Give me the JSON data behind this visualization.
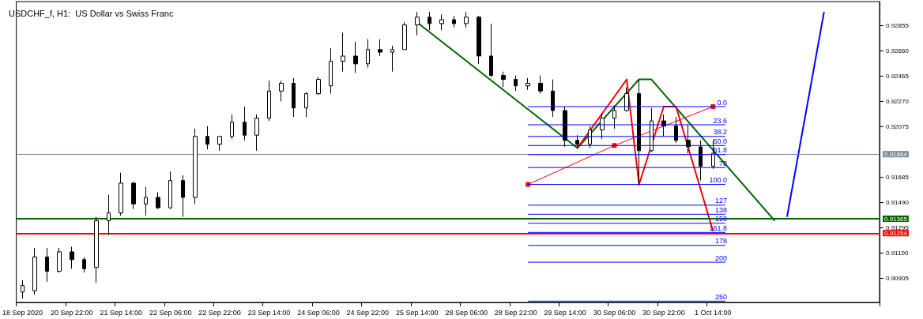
{
  "chart_data": {
    "type": "candlestick",
    "title": "USDCHF_f, H1:  US Dollar vs Swiss Franc",
    "categories": [
      "18 Sep 2020",
      null,
      null,
      null,
      "20 Sep 22:00",
      null,
      null,
      null,
      "21 Sep 14:00",
      null,
      null,
      null,
      "22 Sep 06:00",
      null,
      null,
      null,
      "22 Sep 22:00",
      null,
      null,
      null,
      "23 Sep 14:00",
      null,
      null,
      null,
      "24 Sep 06:00",
      null,
      null,
      null,
      "24 Sep 22:00",
      null,
      null,
      null,
      "25 Sep 14:00",
      null,
      null,
      null,
      "28 Sep 06:00",
      null,
      null,
      null,
      "28 Sep 22:00",
      null,
      null,
      null,
      "29 Sep 14:00",
      null,
      null,
      null,
      "30 Sep 06:00",
      null,
      null,
      null,
      "30 Sep 22:00",
      null,
      null,
      null,
      "1 Oct 14:00",
      null,
      null,
      null,
      null,
      null,
      null,
      null,
      null,
      null,
      null,
      null,
      null,
      null
    ],
    "ohlc": [
      [
        0.908,
        0.9089,
        0.9075,
        0.9085
      ],
      [
        0.9081,
        0.9114,
        0.9078,
        0.9107
      ],
      [
        0.9107,
        0.9114,
        0.9088,
        0.9096
      ],
      [
        0.9096,
        0.9114,
        0.9095,
        0.9111
      ],
      [
        0.9111,
        0.9115,
        0.9098,
        0.9105
      ],
      [
        0.9105,
        0.9107,
        0.9095,
        0.9098
      ],
      [
        0.9099,
        0.9138,
        0.9087,
        0.9135
      ],
      [
        0.9135,
        0.9155,
        0.9124,
        0.9141
      ],
      [
        0.9141,
        0.9172,
        0.9139,
        0.9164
      ],
      [
        0.9164,
        0.9165,
        0.9144,
        0.9148
      ],
      [
        0.9148,
        0.9161,
        0.9139,
        0.9153
      ],
      [
        0.9153,
        0.9157,
        0.9144,
        0.9145
      ],
      [
        0.9145,
        0.9173,
        0.9144,
        0.9166
      ],
      [
        0.9166,
        0.917,
        0.9138,
        0.9153
      ],
      [
        0.9153,
        0.9206,
        0.9148,
        0.92
      ],
      [
        0.92,
        0.9208,
        0.919,
        0.9194
      ],
      [
        0.9194,
        0.92,
        0.9189,
        0.92
      ],
      [
        0.92,
        0.9217,
        0.9198,
        0.9211
      ],
      [
        0.9211,
        0.9223,
        0.9197,
        0.9201
      ],
      [
        0.9201,
        0.9217,
        0.9189,
        0.9214
      ],
      [
        0.9214,
        0.9243,
        0.9212,
        0.9235
      ],
      [
        0.9235,
        0.9243,
        0.9227,
        0.9241
      ],
      [
        0.9241,
        0.9245,
        0.9215,
        0.9222
      ],
      [
        0.9222,
        0.9234,
        0.9215,
        0.9233
      ],
      [
        0.9233,
        0.9246,
        0.9232,
        0.9244
      ],
      [
        0.9239,
        0.9268,
        0.9233,
        0.9258
      ],
      [
        0.9258,
        0.928,
        0.925,
        0.9262
      ],
      [
        0.9262,
        0.9273,
        0.9249,
        0.9256
      ],
      [
        0.9256,
        0.9275,
        0.9253,
        0.9267
      ],
      [
        0.9267,
        0.9275,
        0.9262,
        0.9265
      ],
      [
        0.9265,
        0.927,
        0.925,
        0.9267
      ],
      [
        0.9267,
        0.9288,
        0.9267,
        0.9286
      ],
      [
        0.9286,
        0.9296,
        0.9278,
        0.9292
      ],
      [
        0.9292,
        0.9296,
        0.9282,
        0.9287
      ],
      [
        0.9287,
        0.9294,
        0.9282,
        0.929
      ],
      [
        0.929,
        0.9293,
        0.9284,
        0.9287
      ],
      [
        0.9287,
        0.9296,
        0.9284,
        0.9292
      ],
      [
        0.9292,
        0.9293,
        0.9256,
        0.9262
      ],
      [
        0.9262,
        0.9287,
        0.9246,
        0.9247
      ],
      [
        0.9247,
        0.925,
        0.9238,
        0.9244
      ],
      [
        0.9244,
        0.9247,
        0.9235,
        0.9239
      ],
      [
        0.9239,
        0.9245,
        0.9236,
        0.9241
      ],
      [
        0.9241,
        0.9247,
        0.9233,
        0.9235
      ],
      [
        0.9235,
        0.9244,
        0.9215,
        0.922
      ],
      [
        0.922,
        0.9223,
        0.9192,
        0.9197
      ],
      [
        0.9197,
        0.9201,
        0.9191,
        0.9194
      ],
      [
        0.9194,
        0.9208,
        0.9191,
        0.9205
      ],
      [
        0.9205,
        0.9218,
        0.9198,
        0.9214
      ],
      [
        0.9214,
        0.9224,
        0.9206,
        0.922
      ],
      [
        0.922,
        0.9238,
        0.9219,
        0.9233
      ],
      [
        0.9233,
        0.9244,
        0.9162,
        0.9189
      ],
      [
        0.9189,
        0.9222,
        0.9188,
        0.9212
      ],
      [
        0.9212,
        0.9217,
        0.92,
        0.9208
      ],
      [
        0.9208,
        0.9215,
        0.9195,
        0.9197
      ],
      [
        0.9197,
        0.9209,
        0.9187,
        0.9192
      ],
      [
        0.9192,
        0.9197,
        0.9166,
        0.9177
      ],
      [
        0.9177,
        0.9197,
        0.9175,
        0.9187
      ],
      null,
      null,
      null,
      null,
      null,
      null,
      null,
      null,
      null,
      null,
      null,
      null,
      null
    ],
    "series": [
      {
        "type": "line",
        "color": "#006400",
        "marker": "none",
        "values": [
          null,
          null,
          null,
          null,
          null,
          null,
          null,
          null,
          null,
          null,
          null,
          null,
          null,
          null,
          null,
          null,
          null,
          null,
          null,
          null,
          null,
          null,
          null,
          null,
          null,
          null,
          null,
          null,
          null,
          null,
          null,
          null,
          0.9288,
          null,
          null,
          null,
          null,
          null,
          null,
          null,
          null,
          null,
          null,
          null,
          null,
          0.9191,
          null,
          null,
          null,
          null,
          0.9244,
          0.9244,
          null,
          null,
          null,
          null,
          null,
          null,
          null,
          null,
          null,
          0.9135,
          null,
          null,
          null,
          null,
          null,
          null,
          null,
          null
        ]
      },
      {
        "type": "line",
        "color": "#ff0000",
        "marker": "none",
        "values": [
          null,
          null,
          null,
          null,
          null,
          null,
          null,
          null,
          null,
          null,
          null,
          null,
          null,
          null,
          null,
          null,
          null,
          null,
          null,
          null,
          null,
          null,
          null,
          null,
          null,
          null,
          null,
          null,
          null,
          null,
          null,
          null,
          null,
          null,
          null,
          null,
          null,
          null,
          null,
          null,
          null,
          null,
          null,
          null,
          null,
          0.9191,
          null,
          null,
          null,
          0.9244,
          0.9163,
          null,
          0.9223,
          0.9223,
          null,
          null,
          0.9127,
          null,
          null,
          null,
          null,
          null,
          null,
          null,
          null,
          null,
          null,
          null,
          null,
          null
        ]
      },
      {
        "type": "line",
        "color": "#ff0000",
        "marker": "square",
        "values": [
          null,
          null,
          null,
          null,
          null,
          null,
          null,
          null,
          null,
          null,
          null,
          null,
          null,
          null,
          null,
          null,
          null,
          null,
          null,
          null,
          null,
          null,
          null,
          null,
          null,
          null,
          null,
          null,
          null,
          null,
          null,
          null,
          null,
          null,
          null,
          null,
          null,
          null,
          null,
          null,
          null,
          0.9163,
          null,
          null,
          null,
          null,
          null,
          null,
          0.9193,
          null,
          null,
          null,
          null,
          null,
          null,
          null,
          0.9223,
          null,
          null,
          null,
          null,
          null,
          null,
          null,
          null,
          null,
          null,
          null,
          null,
          null
        ]
      },
      {
        "type": "line",
        "color": "#0000ff",
        "marker": "none",
        "values": [
          null,
          null,
          null,
          null,
          null,
          null,
          null,
          null,
          null,
          null,
          null,
          null,
          null,
          null,
          null,
          null,
          null,
          null,
          null,
          null,
          null,
          null,
          null,
          null,
          null,
          null,
          null,
          null,
          null,
          null,
          null,
          null,
          null,
          null,
          null,
          null,
          null,
          null,
          null,
          null,
          null,
          null,
          null,
          null,
          null,
          null,
          null,
          null,
          null,
          null,
          null,
          null,
          null,
          null,
          null,
          null,
          null,
          null,
          null,
          null,
          null,
          null,
          0.9138,
          null,
          null,
          0.9296,
          null,
          null,
          null,
          null
        ]
      },
      {
        "type": "line",
        "name": "0.0",
        "color": "#0000ff",
        "marker": "none",
        "values": [
          null,
          null,
          null,
          null,
          null,
          null,
          null,
          null,
          null,
          null,
          null,
          null,
          null,
          null,
          null,
          null,
          null,
          null,
          null,
          null,
          null,
          null,
          null,
          null,
          null,
          null,
          null,
          null,
          null,
          null,
          null,
          null,
          null,
          null,
          null,
          null,
          null,
          null,
          null,
          null,
          null,
          0.9223,
          null,
          null,
          null,
          null,
          null,
          null,
          null,
          null,
          null,
          null,
          null,
          null,
          null,
          null,
          null,
          0.9223,
          null,
          null,
          null,
          null,
          null,
          null,
          null,
          null,
          null,
          null,
          null,
          null
        ]
      },
      {
        "type": "line",
        "name": "23.6",
        "color": "#0000ff",
        "marker": "none",
        "values": [
          null,
          null,
          null,
          null,
          null,
          null,
          null,
          null,
          null,
          null,
          null,
          null,
          null,
          null,
          null,
          null,
          null,
          null,
          null,
          null,
          null,
          null,
          null,
          null,
          null,
          null,
          null,
          null,
          null,
          null,
          null,
          null,
          null,
          null,
          null,
          null,
          null,
          null,
          null,
          null,
          null,
          0.9209,
          null,
          null,
          null,
          null,
          null,
          null,
          null,
          null,
          null,
          null,
          null,
          null,
          null,
          null,
          null,
          0.9209,
          null,
          null,
          null,
          null,
          null,
          null,
          null,
          null,
          null,
          null,
          null,
          null
        ]
      },
      {
        "type": "line",
        "name": "38.2",
        "color": "#0000ff",
        "marker": "none",
        "values": [
          null,
          null,
          null,
          null,
          null,
          null,
          null,
          null,
          null,
          null,
          null,
          null,
          null,
          null,
          null,
          null,
          null,
          null,
          null,
          null,
          null,
          null,
          null,
          null,
          null,
          null,
          null,
          null,
          null,
          null,
          null,
          null,
          null,
          null,
          null,
          null,
          null,
          null,
          null,
          null,
          null,
          0.92,
          null,
          null,
          null,
          null,
          null,
          null,
          null,
          null,
          null,
          null,
          null,
          null,
          null,
          null,
          null,
          0.92,
          null,
          null,
          null,
          null,
          null,
          null,
          null,
          null,
          null,
          null,
          null,
          null
        ]
      },
      {
        "type": "line",
        "name": "50.0",
        "color": "#0000ff",
        "marker": "none",
        "values": [
          null,
          null,
          null,
          null,
          null,
          null,
          null,
          null,
          null,
          null,
          null,
          null,
          null,
          null,
          null,
          null,
          null,
          null,
          null,
          null,
          null,
          null,
          null,
          null,
          null,
          null,
          null,
          null,
          null,
          null,
          null,
          null,
          null,
          null,
          null,
          null,
          null,
          null,
          null,
          null,
          null,
          0.9193,
          null,
          null,
          null,
          null,
          null,
          null,
          null,
          null,
          null,
          null,
          null,
          null,
          null,
          null,
          null,
          0.9193,
          null,
          null,
          null,
          null,
          null,
          null,
          null,
          null,
          null,
          null,
          null,
          null
        ]
      },
      {
        "type": "line",
        "name": "61.8",
        "color": "#0000ff",
        "marker": "none",
        "values": [
          null,
          null,
          null,
          null,
          null,
          null,
          null,
          null,
          null,
          null,
          null,
          null,
          null,
          null,
          null,
          null,
          null,
          null,
          null,
          null,
          null,
          null,
          null,
          null,
          null,
          null,
          null,
          null,
          null,
          null,
          null,
          null,
          null,
          null,
          null,
          null,
          null,
          null,
          null,
          null,
          null,
          0.9186,
          null,
          null,
          null,
          null,
          null,
          null,
          null,
          null,
          null,
          null,
          null,
          null,
          null,
          null,
          null,
          0.9186,
          null,
          null,
          null,
          null,
          null,
          null,
          null,
          null,
          null,
          null,
          null,
          null
        ]
      },
      {
        "type": "line",
        "name": "78",
        "color": "#0000ff",
        "marker": "none",
        "values": [
          null,
          null,
          null,
          null,
          null,
          null,
          null,
          null,
          null,
          null,
          null,
          null,
          null,
          null,
          null,
          null,
          null,
          null,
          null,
          null,
          null,
          null,
          null,
          null,
          null,
          null,
          null,
          null,
          null,
          null,
          null,
          null,
          null,
          null,
          null,
          null,
          null,
          null,
          null,
          null,
          null,
          0.9176,
          null,
          null,
          null,
          null,
          null,
          null,
          null,
          null,
          null,
          null,
          null,
          null,
          null,
          null,
          null,
          0.9176,
          null,
          null,
          null,
          null,
          null,
          null,
          null,
          null,
          null,
          null,
          null,
          null
        ]
      },
      {
        "type": "line",
        "name": "100.0",
        "color": "#0000ff",
        "marker": "none",
        "values": [
          null,
          null,
          null,
          null,
          null,
          null,
          null,
          null,
          null,
          null,
          null,
          null,
          null,
          null,
          null,
          null,
          null,
          null,
          null,
          null,
          null,
          null,
          null,
          null,
          null,
          null,
          null,
          null,
          null,
          null,
          null,
          null,
          null,
          null,
          null,
          null,
          null,
          null,
          null,
          null,
          null,
          0.9163,
          null,
          null,
          null,
          null,
          null,
          null,
          null,
          null,
          null,
          null,
          null,
          null,
          null,
          null,
          null,
          0.9163,
          null,
          null,
          null,
          null,
          null,
          null,
          null,
          null,
          null,
          null,
          null,
          null
        ]
      },
      {
        "type": "line",
        "name": "127",
        "color": "#0000ff",
        "marker": "none",
        "values": [
          null,
          null,
          null,
          null,
          null,
          null,
          null,
          null,
          null,
          null,
          null,
          null,
          null,
          null,
          null,
          null,
          null,
          null,
          null,
          null,
          null,
          null,
          null,
          null,
          null,
          null,
          null,
          null,
          null,
          null,
          null,
          null,
          null,
          null,
          null,
          null,
          null,
          null,
          null,
          null,
          null,
          0.9147,
          null,
          null,
          null,
          null,
          null,
          null,
          null,
          null,
          null,
          null,
          null,
          null,
          null,
          null,
          null,
          0.9147,
          null,
          null,
          null,
          null,
          null,
          null,
          null,
          null,
          null,
          null,
          null,
          null
        ]
      },
      {
        "type": "line",
        "name": "138",
        "color": "#0000ff",
        "marker": "none",
        "values": [
          null,
          null,
          null,
          null,
          null,
          null,
          null,
          null,
          null,
          null,
          null,
          null,
          null,
          null,
          null,
          null,
          null,
          null,
          null,
          null,
          null,
          null,
          null,
          null,
          null,
          null,
          null,
          null,
          null,
          null,
          null,
          null,
          null,
          null,
          null,
          null,
          null,
          null,
          null,
          null,
          null,
          0.914,
          null,
          null,
          null,
          null,
          null,
          null,
          null,
          null,
          null,
          null,
          null,
          null,
          null,
          null,
          null,
          0.914,
          null,
          null,
          null,
          null,
          null,
          null,
          null,
          null,
          null,
          null,
          null,
          null
        ]
      },
      {
        "type": "line",
        "name": "150",
        "color": "#0000ff",
        "marker": "none",
        "values": [
          null,
          null,
          null,
          null,
          null,
          null,
          null,
          null,
          null,
          null,
          null,
          null,
          null,
          null,
          null,
          null,
          null,
          null,
          null,
          null,
          null,
          null,
          null,
          null,
          null,
          null,
          null,
          null,
          null,
          null,
          null,
          null,
          null,
          null,
          null,
          null,
          null,
          null,
          null,
          null,
          null,
          0.9133,
          null,
          null,
          null,
          null,
          null,
          null,
          null,
          null,
          null,
          null,
          null,
          null,
          null,
          null,
          null,
          0.9133,
          null,
          null,
          null,
          null,
          null,
          null,
          null,
          null,
          null,
          null,
          null,
          null
        ]
      },
      {
        "type": "line",
        "name": "161.8",
        "color": "#0000ff",
        "marker": "none",
        "values": [
          null,
          null,
          null,
          null,
          null,
          null,
          null,
          null,
          null,
          null,
          null,
          null,
          null,
          null,
          null,
          null,
          null,
          null,
          null,
          null,
          null,
          null,
          null,
          null,
          null,
          null,
          null,
          null,
          null,
          null,
          null,
          null,
          null,
          null,
          null,
          null,
          null,
          null,
          null,
          null,
          null,
          0.9126,
          null,
          null,
          null,
          null,
          null,
          null,
          null,
          null,
          null,
          null,
          null,
          null,
          null,
          null,
          null,
          0.9126,
          null,
          null,
          null,
          null,
          null,
          null,
          null,
          null,
          null,
          null,
          null,
          null
        ]
      },
      {
        "type": "line",
        "name": "178",
        "color": "#0000ff",
        "marker": "none",
        "values": [
          null,
          null,
          null,
          null,
          null,
          null,
          null,
          null,
          null,
          null,
          null,
          null,
          null,
          null,
          null,
          null,
          null,
          null,
          null,
          null,
          null,
          null,
          null,
          null,
          null,
          null,
          null,
          null,
          null,
          null,
          null,
          null,
          null,
          null,
          null,
          null,
          null,
          null,
          null,
          null,
          null,
          0.9116,
          null,
          null,
          null,
          null,
          null,
          null,
          null,
          null,
          null,
          null,
          null,
          null,
          null,
          null,
          null,
          0.9116,
          null,
          null,
          null,
          null,
          null,
          null,
          null,
          null,
          null,
          null,
          null,
          null
        ]
      },
      {
        "type": "line",
        "name": "200",
        "color": "#0000ff",
        "marker": "none",
        "values": [
          null,
          null,
          null,
          null,
          null,
          null,
          null,
          null,
          null,
          null,
          null,
          null,
          null,
          null,
          null,
          null,
          null,
          null,
          null,
          null,
          null,
          null,
          null,
          null,
          null,
          null,
          null,
          null,
          null,
          null,
          null,
          null,
          null,
          null,
          null,
          null,
          null,
          null,
          null,
          null,
          null,
          0.9103,
          null,
          null,
          null,
          null,
          null,
          null,
          null,
          null,
          null,
          null,
          null,
          null,
          null,
          null,
          null,
          0.9103,
          null,
          null,
          null,
          null,
          null,
          null,
          null,
          null,
          null,
          null,
          null,
          null
        ]
      },
      {
        "type": "line",
        "name": "250",
        "color": "#0000ff",
        "marker": "none",
        "values": [
          null,
          null,
          null,
          null,
          null,
          null,
          null,
          null,
          null,
          null,
          null,
          null,
          null,
          null,
          null,
          null,
          null,
          null,
          null,
          null,
          null,
          null,
          null,
          null,
          null,
          null,
          null,
          null,
          null,
          null,
          null,
          null,
          null,
          null,
          null,
          null,
          null,
          null,
          null,
          null,
          null,
          0.9073,
          null,
          null,
          null,
          null,
          null,
          null,
          null,
          null,
          null,
          null,
          null,
          null,
          null,
          null,
          null,
          0.9073,
          null,
          null,
          null,
          null,
          null,
          null,
          null,
          null,
          null,
          null,
          null,
          null
        ]
      }
    ],
    "ylim": [
      0.9072,
      0.9304
    ],
    "yticks": [
      0.90905,
      {
        "value": 0.911,
        "label": "0.91100"
      },
      0.91295,
      {
        "value": 0.9149,
        "label": "0.91490"
      },
      0.91685,
      0.92075,
      {
        "value": 0.9227,
        "label": "0.92270"
      },
      0.92465,
      {
        "value": 0.9266,
        "label": "0.92660"
      },
      0.92855
    ],
    "ref_lines": [
      {
        "axis": "y",
        "value": 0.91864,
        "label": "0.91864",
        "color": "#778899"
      },
      {
        "axis": "y",
        "value": 0.91365,
        "label": "0.91365",
        "color": "#006400"
      },
      {
        "axis": "y",
        "value": 0.91254,
        "label": "0.91254",
        "color": "#ff0000"
      }
    ],
    "grid": false
  }
}
